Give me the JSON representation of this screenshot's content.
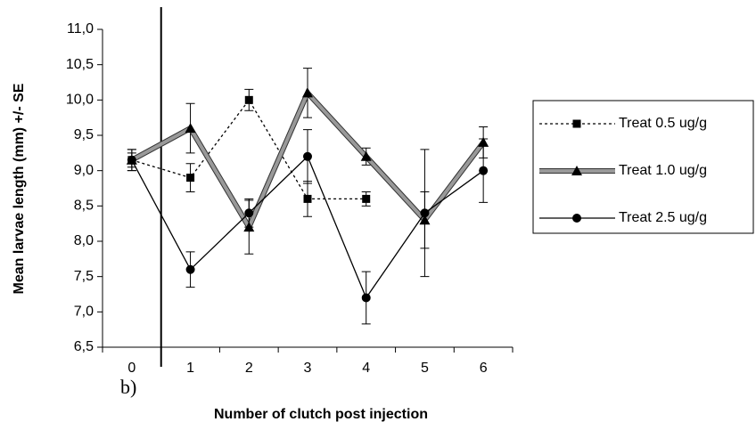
{
  "chart_data": {
    "type": "line",
    "annotation": "b)",
    "x_label": "Number of clutch post injection",
    "y_label": "Mean larvae length (mm) +/- SE",
    "categories": [
      "0",
      "1",
      "2",
      "3",
      "4",
      "5",
      "6"
    ],
    "ylim": [
      6.5,
      11.0
    ],
    "yticks": [
      {
        "value": 6.5,
        "label": "6,5"
      },
      {
        "value": 7.0,
        "label": "7,0"
      },
      {
        "value": 7.5,
        "label": "7,5"
      },
      {
        "value": 8.0,
        "label": "8,0"
      },
      {
        "value": 8.5,
        "label": "8,5"
      },
      {
        "value": 9.0,
        "label": "9,0"
      },
      {
        "value": 9.5,
        "label": "9,5"
      },
      {
        "value": 10.0,
        "label": "10,0"
      },
      {
        "value": 10.5,
        "label": "10,5"
      },
      {
        "value": 11.0,
        "label": "11,0"
      }
    ],
    "grid": false,
    "legend": "right",
    "series": [
      {
        "name": "Treat 0.5 ug/g",
        "color": "#000000",
        "style": "dotted",
        "marker": "square",
        "values": [
          9.15,
          8.9,
          10.0,
          8.6,
          8.6,
          null,
          null
        ],
        "errors": [
          0.1,
          0.2,
          0.15,
          0.25,
          0.1,
          null,
          null
        ]
      },
      {
        "name": "Treat 1.0 ug/g",
        "color": "#999999",
        "style": "double",
        "marker": "triangle",
        "values": [
          9.15,
          9.6,
          8.2,
          10.1,
          9.2,
          8.3,
          9.4
        ],
        "errors": [
          0.15,
          0.35,
          0.38,
          0.35,
          0.12,
          0.4,
          0.22
        ]
      },
      {
        "name": "Treat 2.5 ug/g",
        "color": "#000000",
        "style": "solid",
        "marker": "circle",
        "values": [
          9.15,
          7.6,
          8.4,
          9.2,
          7.2,
          8.4,
          9.0
        ],
        "errors": [
          0.15,
          0.25,
          0.2,
          0.38,
          0.37,
          0.9,
          0.45
        ]
      }
    ]
  }
}
